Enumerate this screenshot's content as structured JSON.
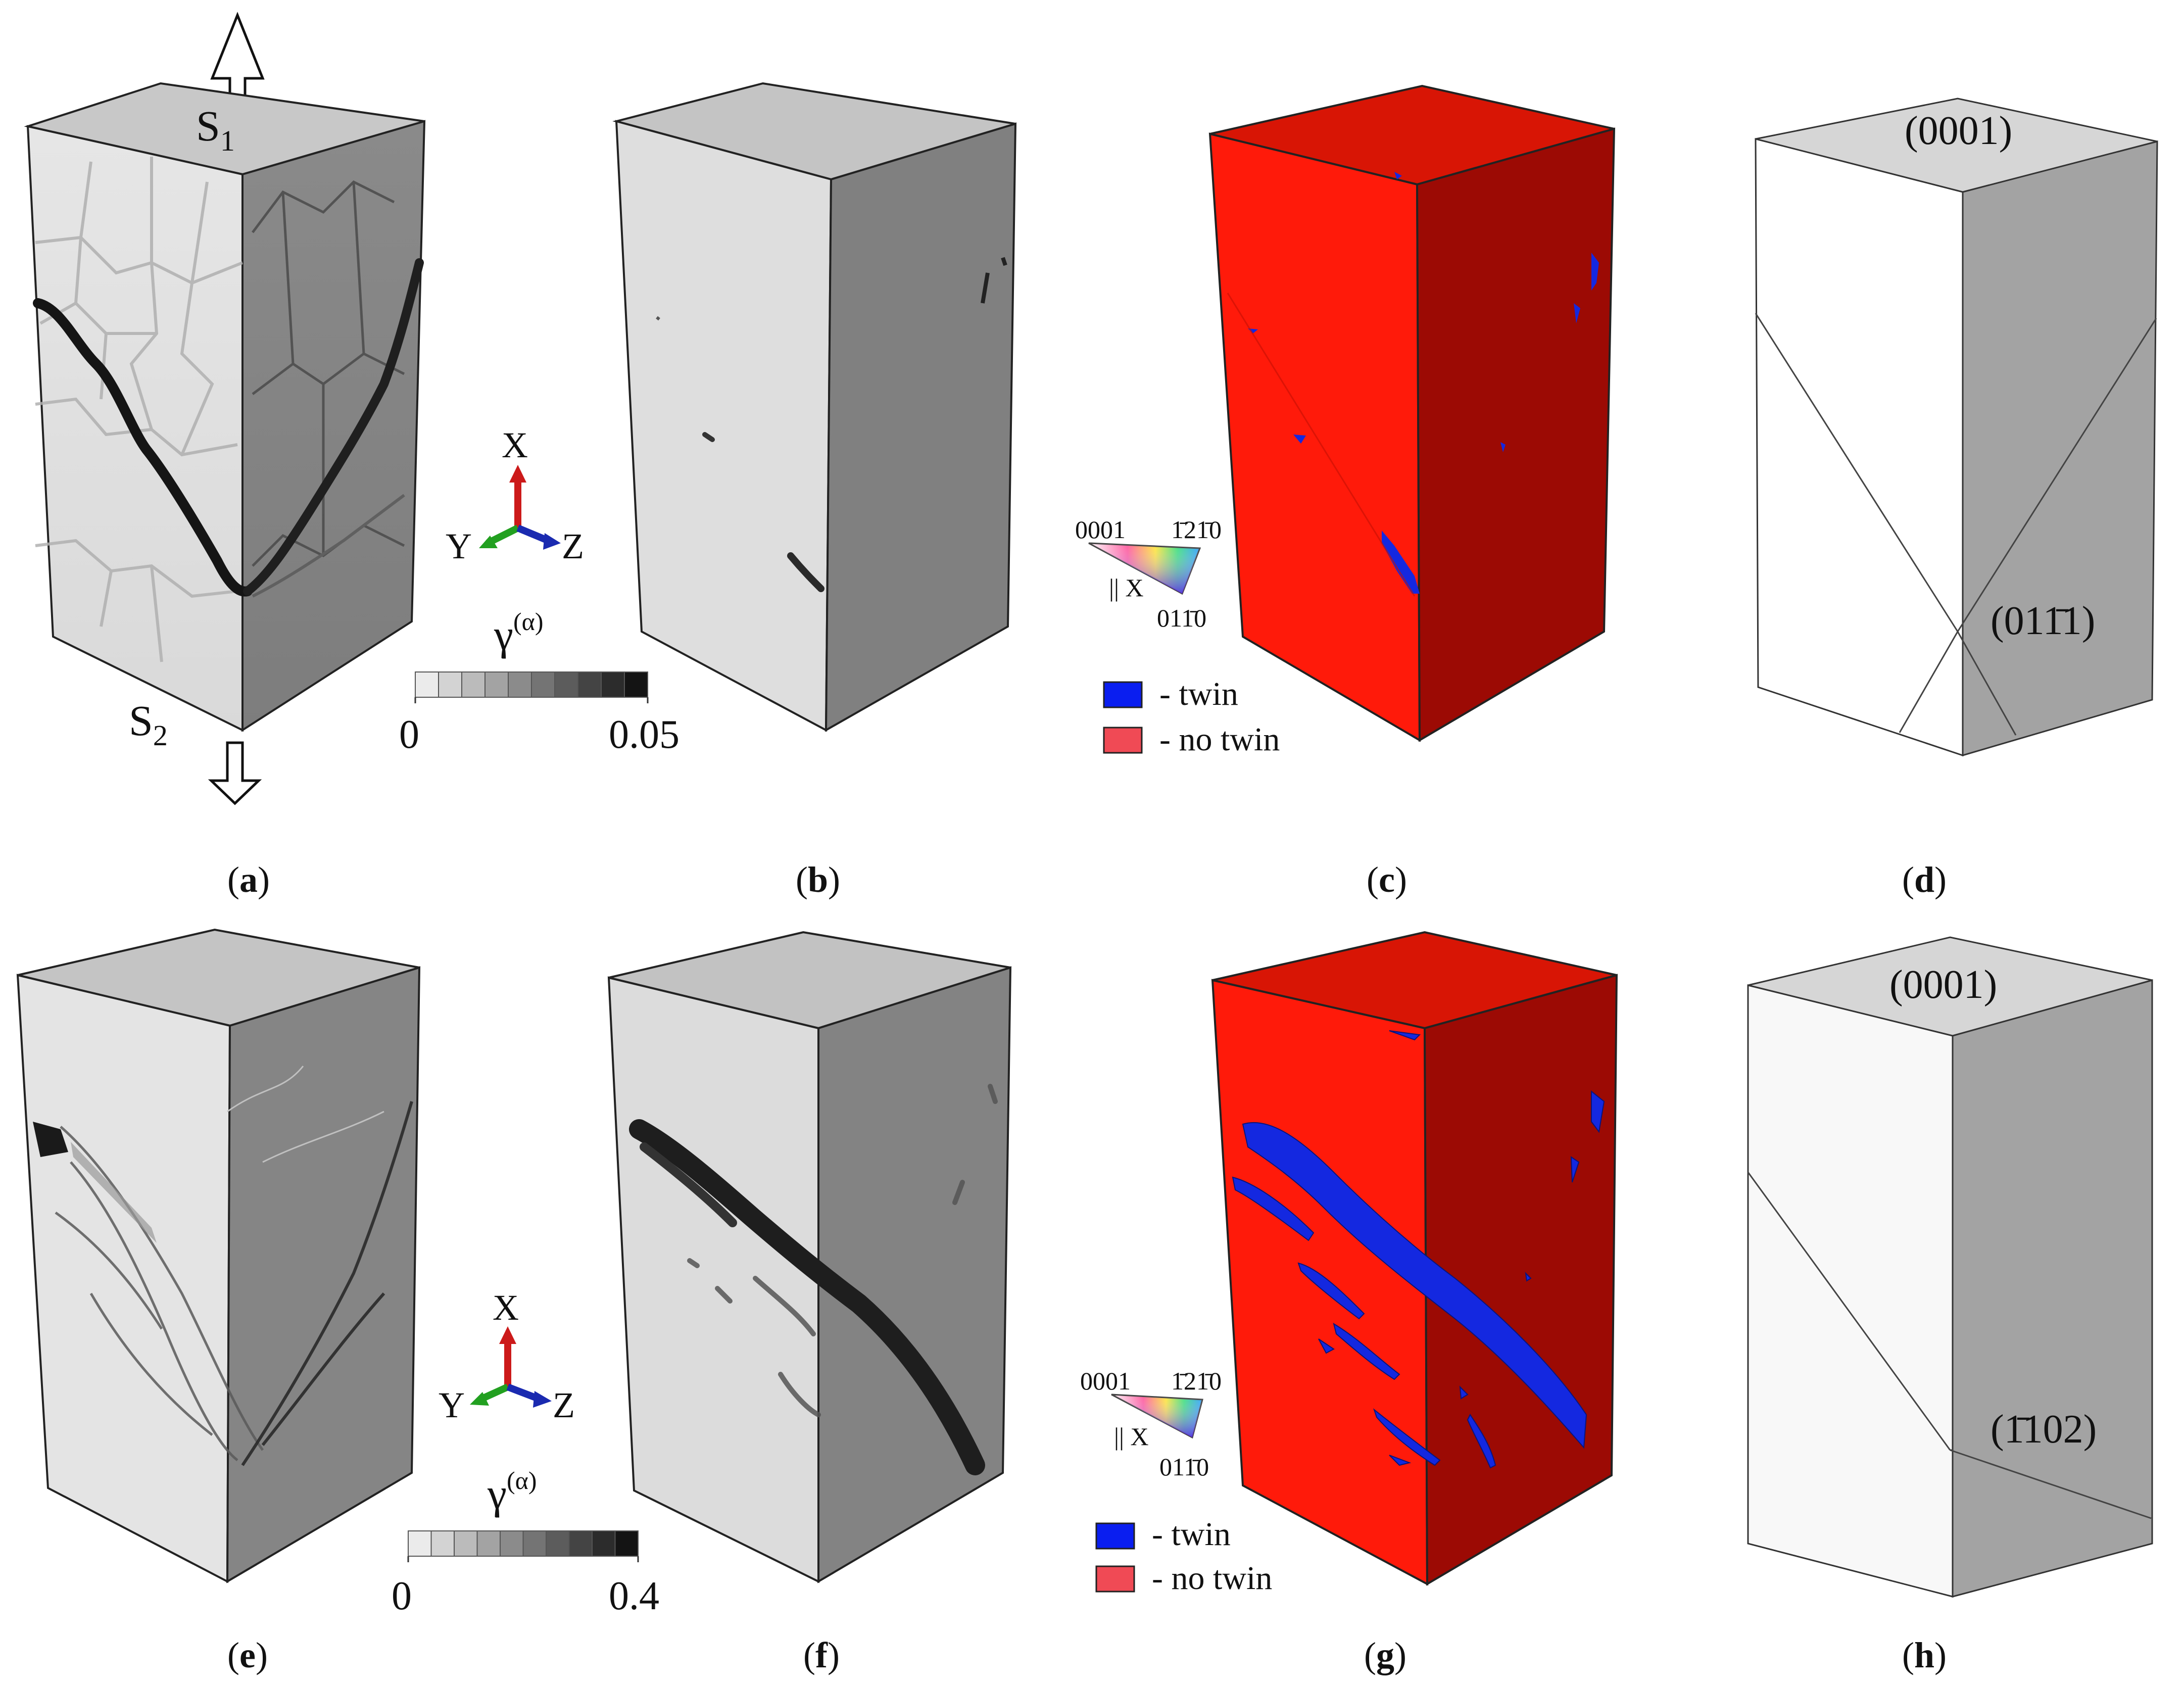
{
  "top_row": {
    "panel_labels": [
      "a",
      "b",
      "c",
      "d"
    ],
    "load_top_label": "S",
    "load_top_sub": "1",
    "load_bottom_label": "S",
    "load_bottom_sub": "2",
    "axes": {
      "x": "X",
      "y": "Y",
      "z": "Z"
    },
    "colorbar": {
      "symbol": "γ",
      "superscript": "(α)",
      "min": "0",
      "max": "0.05",
      "steps": 10
    },
    "ipf": {
      "corner_left": "0001",
      "corner_right": "1̄21̄0",
      "corner_bottom": "011̄0",
      "direction": "|| X"
    },
    "legend": [
      {
        "label": "- twin",
        "color": "#0a1ef0"
      },
      {
        "label": "- no twin",
        "color": "#f04a55"
      }
    ],
    "planes": {
      "basal": "(0001)",
      "twin_plane": "(011̄1)"
    }
  },
  "bottom_row": {
    "panel_labels": [
      "e",
      "f",
      "g",
      "h"
    ],
    "axes": {
      "x": "X",
      "y": "Y",
      "z": "Z"
    },
    "colorbar": {
      "symbol": "γ",
      "superscript": "(α)",
      "min": "0",
      "max": "0.4",
      "steps": 10
    },
    "ipf": {
      "corner_left": "0001",
      "corner_right": "1̄21̄0",
      "corner_bottom": "011̄0",
      "direction": "|| X"
    },
    "legend": [
      {
        "label": "- twin",
        "color": "#0a1ef0"
      },
      {
        "label": "- no twin",
        "color": "#f04a55"
      }
    ],
    "planes": {
      "basal": "(0001)",
      "twin_plane": "(1̄102)"
    }
  },
  "colors": {
    "twin": "#1428e0",
    "grain_front": "#ff1a0a",
    "grain_side": "#9c0a04",
    "grain_top": "#d81505",
    "axis_x": "#cc1a1a",
    "axis_y": "#22a020",
    "axis_z": "#1a2ab0"
  }
}
